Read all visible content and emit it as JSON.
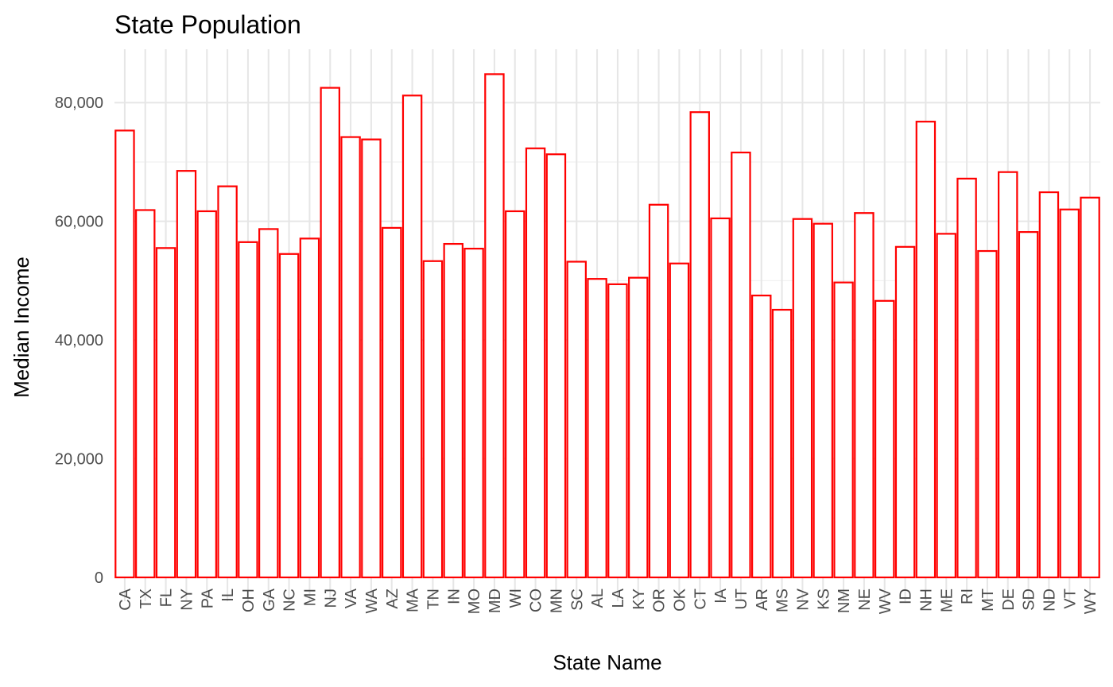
{
  "chart_data": {
    "type": "bar",
    "title": "State Population",
    "xlabel": "State Name",
    "ylabel": "Median Income",
    "categories": [
      "CA",
      "TX",
      "FL",
      "NY",
      "PA",
      "IL",
      "OH",
      "GA",
      "NC",
      "MI",
      "NJ",
      "VA",
      "WA",
      "AZ",
      "MA",
      "TN",
      "IN",
      "MO",
      "MD",
      "WI",
      "CO",
      "MN",
      "SC",
      "AL",
      "LA",
      "KY",
      "OR",
      "OK",
      "CT",
      "IA",
      "UT",
      "AR",
      "MS",
      "NV",
      "KS",
      "NM",
      "NE",
      "WV",
      "ID",
      "NH",
      "ME",
      "RI",
      "MT",
      "DE",
      "SD",
      "ND",
      "VT",
      "WY"
    ],
    "values": [
      75300,
      61900,
      55500,
      68500,
      61700,
      65900,
      56500,
      58700,
      54500,
      57100,
      82500,
      74200,
      73800,
      58900,
      81200,
      53300,
      56200,
      55400,
      84800,
      61700,
      72300,
      71300,
      53200,
      50300,
      49400,
      50500,
      62800,
      52900,
      78400,
      60500,
      71600,
      47500,
      45100,
      60400,
      59600,
      49700,
      61400,
      46600,
      55700,
      76800,
      57900,
      67200,
      55000,
      68300,
      58200,
      64900,
      62000,
      64000
    ],
    "ylim": [
      0,
      89000
    ],
    "yticks": [
      0,
      20000,
      40000,
      60000,
      80000
    ],
    "ytick_labels": [
      "0",
      "20,000",
      "40,000",
      "60,000",
      "80,000"
    ],
    "grid": true,
    "legend": "none",
    "colors": {
      "bar_outline": "#ff0000",
      "bar_fill": "#ffffff",
      "grid": "#e6e6e6"
    }
  }
}
